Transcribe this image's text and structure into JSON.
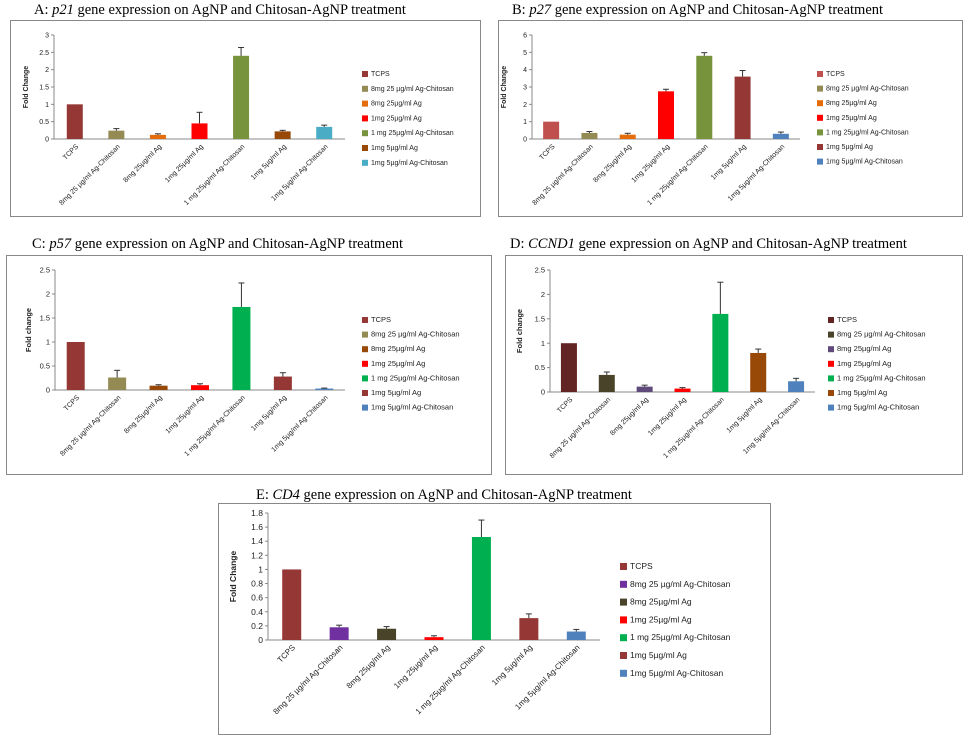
{
  "series_names": [
    "TCPS",
    "8mg 25 µg/ml  Ag-Chitosan",
    "8mg 25µg/ml Ag",
    "1mg  25µg/ml Ag",
    "1 mg 25µg/ml Ag-Chitosan",
    "1mg 5µg/ml Ag",
    "1mg  5µg/ml Ag-Chitosan"
  ],
  "panels": [
    {
      "title_prefix": "A: ",
      "gene": "p21",
      "title_suffix": " gene expression  on AgNP and Chitosan-AgNP treatment"
    },
    {
      "title_prefix": "B: ",
      "gene": "p27",
      "title_suffix": " gene expression  on AgNP and Chitosan-AgNP treatment"
    },
    {
      "title_prefix": "C: ",
      "gene": "p57",
      "title_suffix": " gene expression  on AgNP and Chitosan-AgNP treatment"
    },
    {
      "title_prefix": "D:  ",
      "gene": "CCND1",
      "title_suffix": " gene expression  on AgNP and Chitosan-AgNP treatment"
    },
    {
      "title_prefix": "E:  ",
      "gene": "CD4",
      "title_suffix": "  gene expression  on AgNP and Chitosan-AgNP treatment"
    }
  ],
  "chart_data": [
    {
      "type": "bar",
      "title": "A: p21 gene expression  on AgNP and Chitosan-AgNP treatment",
      "ylabel": "Fold Change",
      "ylim": [
        0,
        3
      ],
      "yticks": [
        "0",
        "0.5",
        "1",
        "1.5",
        "2",
        "2.5",
        "3"
      ],
      "categories": [
        "TCPS",
        "8mg 25 µg/ml  Ag-Chitosan",
        "8mg 25µg/ml Ag",
        "1mg  25µg/ml Ag",
        "1 mg 25µg/ml Ag-Chitosan",
        "1mg 5µg/ml Ag",
        "1mg  5µg/ml Ag-Chitosan"
      ],
      "values": [
        1.0,
        0.24,
        0.12,
        0.45,
        2.4,
        0.22,
        0.35
      ],
      "errors": [
        0,
        0.06,
        0.03,
        0.32,
        0.24,
        0.03,
        0.05
      ],
      "colors": [
        "#953735",
        "#948a54",
        "#e46c0a",
        "#ff0000",
        "#77933c",
        "#984807",
        "#4bacc6"
      ],
      "legend": "right"
    },
    {
      "type": "bar",
      "title": "B: p27 gene expression  on AgNP and Chitosan-AgNP treatment",
      "ylabel": "Fold Change",
      "ylim": [
        0,
        6
      ],
      "yticks": [
        "0",
        "1",
        "2",
        "3",
        "4",
        "5",
        "6"
      ],
      "categories": [
        "TCPS",
        "8mg 25 µg/ml  Ag-Chitosan",
        "8mg 25µg/ml Ag",
        "1mg  25µg/ml Ag",
        "1 mg 25µg/ml Ag-Chitosan",
        "1mg 5µg/ml Ag",
        "1mg  5µg/ml Ag-Chitosan"
      ],
      "values": [
        1.0,
        0.35,
        0.25,
        2.75,
        4.8,
        3.6,
        0.3
      ],
      "errors": [
        0,
        0.08,
        0.08,
        0.12,
        0.18,
        0.35,
        0.1
      ],
      "colors": [
        "#c0504d",
        "#948a54",
        "#e46c0a",
        "#ff0000",
        "#77933c",
        "#953735",
        "#4f81bd"
      ],
      "legend": "right"
    },
    {
      "type": "bar",
      "title": "C: p57 gene expression  on AgNP and Chitosan-AgNP treatment",
      "ylabel": "Fold change",
      "ylim": [
        0,
        2.5
      ],
      "yticks": [
        "0",
        "0.5",
        "1",
        "1.5",
        "2",
        "2.5"
      ],
      "categories": [
        "TCPS",
        "8mg 25 µg/ml  Ag-Chitosan",
        "8mg 25µg/ml Ag",
        "1mg  25µg/ml Ag",
        "1 mg 25µg/ml Ag-Chitosan",
        "1mg 5µg/ml Ag",
        "1mg  5µg/ml Ag-Chitosan"
      ],
      "values": [
        1.0,
        0.26,
        0.09,
        0.1,
        1.73,
        0.28,
        0.03
      ],
      "errors": [
        0,
        0.15,
        0.02,
        0.03,
        0.5,
        0.08,
        0.01
      ],
      "colors": [
        "#953735",
        "#948a54",
        "#984807",
        "#ff0000",
        "#00b050",
        "#953735",
        "#4f81bd"
      ],
      "legend": "right"
    },
    {
      "type": "bar",
      "title": "D:  CCND1 gene expression  on AgNP and Chitosan-AgNP treatment",
      "ylabel": "Fold change",
      "ylim": [
        0,
        2.5
      ],
      "yticks": [
        "0",
        "0.5",
        "1",
        "1.5",
        "2",
        "2.5"
      ],
      "categories": [
        "TCPS",
        "8mg 25 µg/ml  Ag-Chitosan",
        "8mg 25µg/ml Ag",
        "1mg  25µg/ml Ag",
        "1 mg 25µg/ml Ag-Chitosan",
        "1mg 5µg/ml Ag",
        "1mg  5µg/ml Ag-Chitosan"
      ],
      "values": [
        1.0,
        0.35,
        0.11,
        0.07,
        1.6,
        0.8,
        0.22
      ],
      "errors": [
        0,
        0.06,
        0.03,
        0.02,
        0.65,
        0.08,
        0.06
      ],
      "colors": [
        "#632523",
        "#494429",
        "#604a7b",
        "#ff0000",
        "#00b050",
        "#984807",
        "#4f81bd"
      ],
      "legend": "right"
    },
    {
      "type": "bar",
      "title": "E:  CD4  gene expression  on AgNP and Chitosan-AgNP treatment",
      "ylabel": "Fold Change",
      "ylim": [
        0,
        1.8
      ],
      "yticks": [
        "0",
        "0.2",
        "0.4",
        "0.6",
        "0.8",
        "1",
        "1.2",
        "1.4",
        "1.6",
        "1.8"
      ],
      "categories": [
        "TCPS",
        "8mg 25 µg/ml  Ag-Chitosan",
        "8mg 25µg/ml Ag",
        "1mg  25µg/ml Ag",
        "1 mg 25µg/ml Ag-Chitosan",
        "1mg 5µg/ml Ag",
        "1mg  5µg/ml Ag-Chitosan"
      ],
      "values": [
        1.0,
        0.18,
        0.16,
        0.04,
        1.46,
        0.31,
        0.12
      ],
      "errors": [
        0,
        0.03,
        0.03,
        0.02,
        0.24,
        0.06,
        0.03
      ],
      "colors": [
        "#953735",
        "#7030a0",
        "#494429",
        "#ff0000",
        "#00b050",
        "#953735",
        "#4f81bd"
      ],
      "legend": "right"
    }
  ]
}
